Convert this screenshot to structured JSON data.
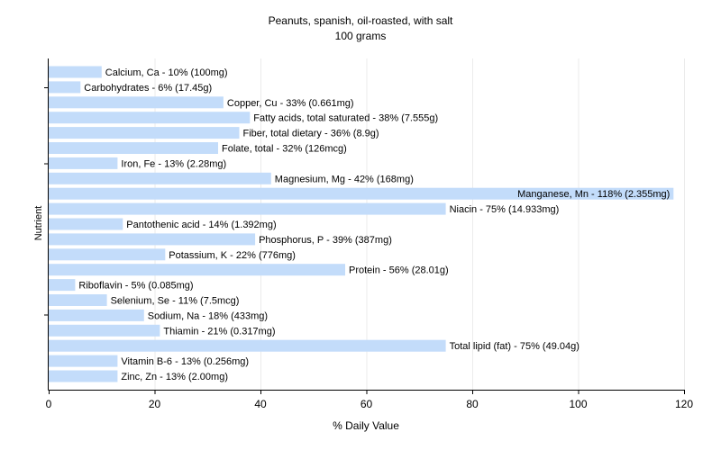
{
  "chart_data": {
    "type": "bar",
    "orientation": "horizontal",
    "title": "Peanuts, spanish, oil-roasted, with salt",
    "subtitle": "100 grams",
    "xlabel": "% Daily Value",
    "ylabel": "Nutrient",
    "xlim": [
      0,
      120
    ],
    "xticks": [
      0,
      20,
      40,
      60,
      80,
      100,
      120
    ],
    "grid": true,
    "bar_color": "#c3dcfa",
    "categories": [
      "Calcium, Ca",
      "Carbohydrates",
      "Copper, Cu",
      "Fatty acids, total saturated",
      "Fiber, total dietary",
      "Folate, total",
      "Iron, Fe",
      "Magnesium, Mg",
      "Manganese, Mn",
      "Niacin",
      "Pantothenic acid",
      "Phosphorus, P",
      "Potassium, K",
      "Protein",
      "Riboflavin",
      "Selenium, Se",
      "Sodium, Na",
      "Thiamin",
      "Total lipid (fat)",
      "Vitamin B-6",
      "Zinc, Zn"
    ],
    "values": [
      10,
      6,
      33,
      38,
      36,
      32,
      13,
      42,
      118,
      75,
      14,
      39,
      22,
      56,
      5,
      11,
      18,
      21,
      75,
      13,
      13
    ],
    "data_labels": [
      "Calcium, Ca - 10% (100mg)",
      "Carbohydrates - 6% (17.45g)",
      "Copper, Cu - 33% (0.661mg)",
      "Fatty acids, total saturated - 38% (7.555g)",
      "Fiber, total dietary - 36% (8.9g)",
      "Folate, total - 32% (126mcg)",
      "Iron, Fe - 13% (2.28mg)",
      "Magnesium, Mg - 42% (168mg)",
      "Manganese, Mn - 118% (2.355mg)",
      "Niacin - 75% (14.933mg)",
      "Pantothenic acid - 14% (1.392mg)",
      "Phosphorus, P - 39% (387mg)",
      "Potassium, K - 22% (776mg)",
      "Protein - 56% (28.01g)",
      "Riboflavin - 5% (0.085mg)",
      "Selenium, Se - 11% (7.5mcg)",
      "Sodium, Na - 18% (433mg)",
      "Thiamin - 21% (0.317mg)",
      "Total lipid (fat) - 75% (49.04g)",
      "Vitamin B-6 - 13% (0.256mg)",
      "Zinc, Zn - 13% (2.00mg)"
    ]
  }
}
